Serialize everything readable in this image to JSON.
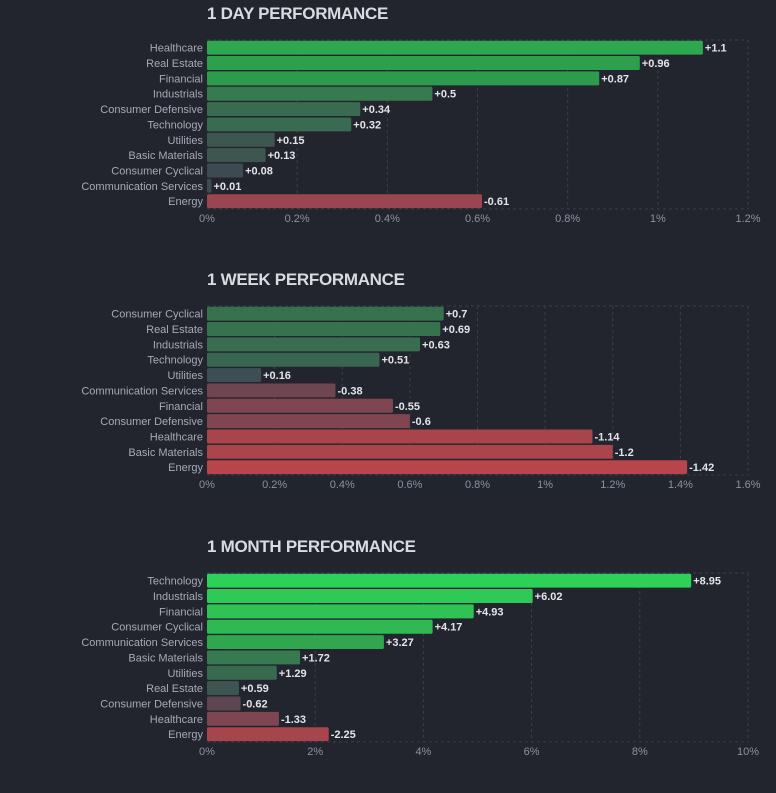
{
  "chart_data": [
    {
      "type": "bar",
      "orientation": "horizontal",
      "title": "1 DAY PERFORMANCE",
      "categories": [
        "Healthcare",
        "Real Estate",
        "Financial",
        "Industrials",
        "Consumer Defensive",
        "Technology",
        "Utilities",
        "Basic Materials",
        "Consumer Cyclical",
        "Communication Services",
        "Energy"
      ],
      "values": [
        1.1,
        0.96,
        0.87,
        0.5,
        0.34,
        0.32,
        0.15,
        0.13,
        0.08,
        0.01,
        -0.61
      ],
      "value_labels": [
        "+1.1",
        "+0.96",
        "+0.87",
        "+0.5",
        "+0.34",
        "+0.32",
        "+0.15",
        "+0.13",
        "+0.08",
        "+0.01",
        "-0.61"
      ],
      "colors": [
        "#2ea84f",
        "#2d9f4d",
        "#2e9a4e",
        "#377a50",
        "#386b50",
        "#386b50",
        "#3d5650",
        "#3d5650",
        "#3d4a52",
        "#3d4a52",
        "#9a4650"
      ],
      "xlim": [
        0,
        1.2
      ],
      "xticks": [
        "0%",
        "0.2%",
        "0.4%",
        "0.6%",
        "0.8%",
        "1%",
        "1.2%"
      ],
      "grid": true,
      "note": "bar length = absolute value"
    },
    {
      "type": "bar",
      "orientation": "horizontal",
      "title": "1 WEEK PERFORMANCE",
      "categories": [
        "Consumer Cyclical",
        "Real Estate",
        "Industrials",
        "Technology",
        "Utilities",
        "Communication Services",
        "Financial",
        "Consumer Defensive",
        "Healthcare",
        "Basic Materials",
        "Energy"
      ],
      "values": [
        0.7,
        0.69,
        0.63,
        0.51,
        0.16,
        -0.38,
        -0.55,
        -0.6,
        -1.14,
        -1.2,
        -1.42
      ],
      "value_labels": [
        "+0.7",
        "+0.69",
        "+0.63",
        "+0.51",
        "+0.16",
        "-0.38",
        "-0.55",
        "-0.6",
        "-1.14",
        "-1.2",
        "-1.42"
      ],
      "colors": [
        "#37724f",
        "#37724f",
        "#386d50",
        "#386650",
        "#3d4f55",
        "#6e4652",
        "#7e4650",
        "#804650",
        "#a8454c",
        "#ab454c",
        "#b8444c"
      ],
      "xlim": [
        0,
        1.6
      ],
      "xticks": [
        "0%",
        "0.2%",
        "0.4%",
        "0.6%",
        "0.8%",
        "1%",
        "1.2%",
        "1.4%",
        "1.6%"
      ],
      "grid": true
    },
    {
      "type": "bar",
      "orientation": "horizontal",
      "title": "1 MONTH PERFORMANCE",
      "categories": [
        "Technology",
        "Industrials",
        "Financial",
        "Consumer Cyclical",
        "Communication Services",
        "Basic Materials",
        "Utilities",
        "Real Estate",
        "Consumer Defensive",
        "Healthcare",
        "Energy"
      ],
      "values": [
        8.95,
        6.02,
        4.93,
        4.17,
        3.27,
        1.72,
        1.29,
        0.59,
        -0.62,
        -1.33,
        -2.25
      ],
      "value_labels": [
        "+8.95",
        "+6.02",
        "+4.93",
        "+4.17",
        "+3.27",
        "+1.72",
        "+1.29",
        "+0.59",
        "-0.62",
        "-1.33",
        "-2.25"
      ],
      "colors": [
        "#2dd158",
        "#2ec956",
        "#2fc254",
        "#30b852",
        "#30a64f",
        "#377a50",
        "#386a50",
        "#3d5650",
        "#5e4552",
        "#7e4650",
        "#a6454c"
      ],
      "xlim": [
        0,
        10
      ],
      "xticks": [
        "0%",
        "2%",
        "4%",
        "6%",
        "8%",
        "10%"
      ],
      "grid": true
    }
  ]
}
